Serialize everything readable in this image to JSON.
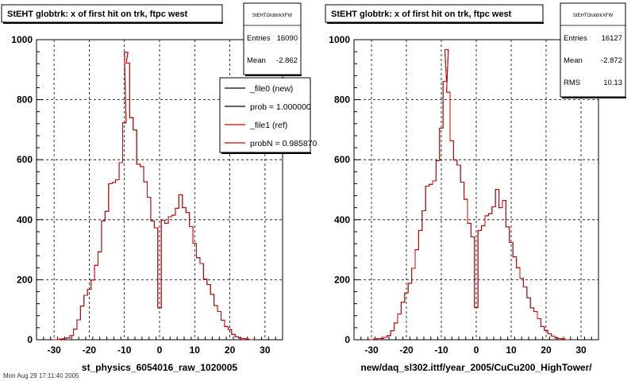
{
  "chart_data": [
    {
      "type": "step-histogram",
      "title": "StEHT globtrk: x of first hit on trk, ftpc west",
      "xlabel": "st_physics_6054016_raw_1020005",
      "xlim": [
        -35,
        35
      ],
      "ylim": [
        0,
        1000
      ],
      "xticks": [
        -30,
        -20,
        -10,
        0,
        10,
        20,
        30
      ],
      "yticks": [
        0,
        200,
        400,
        600,
        800,
        1000
      ],
      "grid": true,
      "stats": {
        "name": "StEHTGlobtrkXFW",
        "rows": [
          {
            "label": "Entries",
            "value": "16090"
          },
          {
            "label": "Mean",
            "value": "-2.862"
          }
        ]
      },
      "legend": {
        "placement": "top-right",
        "entries": [
          {
            "label": "_file0 (new)",
            "color": "#000000"
          },
          {
            "label": "prob = 1.000000",
            "color": "#000000"
          },
          {
            "label": "_file1 (ref)",
            "color": "#d40000"
          },
          {
            "label": "probN = 0.985870",
            "color": "#d40000"
          }
        ]
      },
      "bin_edges": [
        -35,
        35
      ],
      "series": [
        {
          "color": "#000000",
          "values": [
            0,
            0,
            0,
            0,
            0,
            0,
            0,
            0,
            0,
            0,
            0,
            0,
            0,
            0,
            0,
            0,
            0,
            0,
            0,
            0,
            0,
            0,
            0,
            0,
            0,
            0,
            0,
            0,
            0,
            0,
            0,
            0,
            0,
            0,
            0,
            0,
            0,
            0,
            0,
            0,
            0,
            0,
            0,
            0,
            0,
            0,
            0,
            0,
            0,
            0,
            0,
            0,
            0,
            0,
            0,
            0,
            0,
            0,
            0,
            0,
            0,
            0,
            0,
            0,
            0,
            0,
            0,
            0,
            0,
            0
          ]
        },
        {
          "color": "#d40000",
          "values": [
            0,
            0,
            0,
            0,
            0,
            0,
            0,
            0,
            0,
            0,
            0,
            0,
            0,
            0,
            0,
            0,
            0,
            0,
            0,
            0,
            0,
            0,
            0,
            0,
            0,
            0,
            0,
            0,
            0,
            0,
            0,
            0,
            0,
            0,
            0,
            0,
            0,
            0,
            0,
            0,
            0,
            0,
            0,
            0,
            0,
            0,
            0,
            0,
            0,
            0,
            0,
            0,
            0,
            0,
            0,
            0,
            0,
            0,
            0,
            0,
            0,
            0,
            0,
            0,
            0,
            0,
            0,
            0,
            0,
            0
          ]
        }
      ],
      "hist": [
        {
          "x": -30.0,
          "y": 0
        },
        {
          "x": -29.0,
          "y": 0
        },
        {
          "x": -28.0,
          "y": 2
        },
        {
          "x": -27.0,
          "y": 4
        },
        {
          "x": -26.0,
          "y": 6
        },
        {
          "x": -25.0,
          "y": 14
        },
        {
          "x": -24.0,
          "y": 35
        },
        {
          "x": -23.0,
          "y": 66
        },
        {
          "x": -22.0,
          "y": 112
        },
        {
          "x": -21.0,
          "y": 148
        },
        {
          "x": -20.0,
          "y": 168
        },
        {
          "x": -19.0,
          "y": 199
        },
        {
          "x": -18.0,
          "y": 248
        },
        {
          "x": -17.0,
          "y": 293
        },
        {
          "x": -16.0,
          "y": 396
        },
        {
          "x": -15.0,
          "y": 428
        },
        {
          "x": -14.0,
          "y": 520
        },
        {
          "x": -13.0,
          "y": 524
        },
        {
          "x": -12.0,
          "y": 533
        },
        {
          "x": -11.0,
          "y": 590
        },
        {
          "x": -10.0,
          "y": 723
        },
        {
          "x": -9.5,
          "y": 958
        },
        {
          "x": -9.0,
          "y": 922
        },
        {
          "x": -8.0,
          "y": 740
        },
        {
          "x": -7.0,
          "y": 699
        },
        {
          "x": -6.0,
          "y": 585
        },
        {
          "x": -5.0,
          "y": 577
        },
        {
          "x": -4.0,
          "y": 526
        },
        {
          "x": -3.0,
          "y": 475
        },
        {
          "x": -2.0,
          "y": 396
        },
        {
          "x": -1.0,
          "y": 373
        },
        {
          "x": 0.0,
          "y": 106
        },
        {
          "x": 1.0,
          "y": 398
        },
        {
          "x": 2.0,
          "y": 388
        },
        {
          "x": 3.0,
          "y": 410
        },
        {
          "x": 4.0,
          "y": 415
        },
        {
          "x": 5.0,
          "y": 438
        },
        {
          "x": 6.0,
          "y": 483
        },
        {
          "x": 7.0,
          "y": 440
        },
        {
          "x": 8.0,
          "y": 424
        },
        {
          "x": 9.0,
          "y": 377
        },
        {
          "x": 10.0,
          "y": 321
        },
        {
          "x": 11.0,
          "y": 273
        },
        {
          "x": 12.0,
          "y": 254
        },
        {
          "x": 13.0,
          "y": 202
        },
        {
          "x": 14.0,
          "y": 184
        },
        {
          "x": 15.0,
          "y": 151
        },
        {
          "x": 16.0,
          "y": 114
        },
        {
          "x": 17.0,
          "y": 94
        },
        {
          "x": 18.0,
          "y": 65
        },
        {
          "x": 19.0,
          "y": 44
        },
        {
          "x": 20.0,
          "y": 34
        },
        {
          "x": 21.0,
          "y": 18
        },
        {
          "x": 22.0,
          "y": 10
        },
        {
          "x": 23.0,
          "y": 5
        },
        {
          "x": 24.0,
          "y": 4
        },
        {
          "x": 25.0,
          "y": 2
        },
        {
          "x": 26.0,
          "y": 0
        }
      ]
    },
    {
      "type": "step-histogram",
      "title": "StEHT globtrk: x of first hit on trk, ftpc west",
      "xlabel": "new/daq_sl302.ittf/year_2005/CuCu200_HighTower/",
      "xlim": [
        -35,
        35
      ],
      "ylim": [
        0,
        1000
      ],
      "xticks": [
        -30,
        -20,
        -10,
        0,
        10,
        20,
        30
      ],
      "yticks": [
        0,
        200,
        400,
        600,
        800,
        1000
      ],
      "grid": true,
      "stats": {
        "name": "StEHTGlobtrkXFW",
        "rows": [
          {
            "label": "Entries",
            "value": "16127"
          },
          {
            "label": "Mean",
            "value": "-2.872"
          },
          {
            "label": "RMS",
            "value": "10.13"
          }
        ]
      },
      "hist": [
        {
          "x": -30.0,
          "y": 0
        },
        {
          "x": -29.0,
          "y": 2
        },
        {
          "x": -28.0,
          "y": 4
        },
        {
          "x": -27.0,
          "y": 4
        },
        {
          "x": -26.0,
          "y": 8
        },
        {
          "x": -25.0,
          "y": 14
        },
        {
          "x": -24.0,
          "y": 30
        },
        {
          "x": -23.0,
          "y": 56
        },
        {
          "x": -22.0,
          "y": 86
        },
        {
          "x": -21.0,
          "y": 125
        },
        {
          "x": -20.0,
          "y": 156
        },
        {
          "x": -19.0,
          "y": 188
        },
        {
          "x": -18.0,
          "y": 238
        },
        {
          "x": -17.0,
          "y": 300
        },
        {
          "x": -16.0,
          "y": 364
        },
        {
          "x": -15.0,
          "y": 430
        },
        {
          "x": -14.0,
          "y": 512
        },
        {
          "x": -13.0,
          "y": 518
        },
        {
          "x": -12.0,
          "y": 529
        },
        {
          "x": -11.0,
          "y": 597
        },
        {
          "x": -10.0,
          "y": 705
        },
        {
          "x": -9.0,
          "y": 861
        },
        {
          "x": -8.5,
          "y": 967
        },
        {
          "x": -8.0,
          "y": 825
        },
        {
          "x": -7.0,
          "y": 663
        },
        {
          "x": -6.0,
          "y": 599
        },
        {
          "x": -5.0,
          "y": 582
        },
        {
          "x": -4.0,
          "y": 525
        },
        {
          "x": -3.0,
          "y": 468
        },
        {
          "x": -2.0,
          "y": 388
        },
        {
          "x": -1.0,
          "y": 343
        },
        {
          "x": 0.0,
          "y": 107
        },
        {
          "x": 1.0,
          "y": 364
        },
        {
          "x": 2.0,
          "y": 380
        },
        {
          "x": 3.0,
          "y": 413
        },
        {
          "x": 4.0,
          "y": 420
        },
        {
          "x": 5.0,
          "y": 443
        },
        {
          "x": 6.0,
          "y": 501
        },
        {
          "x": 7.0,
          "y": 440
        },
        {
          "x": 8.0,
          "y": 464
        },
        {
          "x": 9.0,
          "y": 376
        },
        {
          "x": 10.0,
          "y": 324
        },
        {
          "x": 11.0,
          "y": 276
        },
        {
          "x": 12.0,
          "y": 240
        },
        {
          "x": 13.0,
          "y": 205
        },
        {
          "x": 14.0,
          "y": 176
        },
        {
          "x": 15.0,
          "y": 140
        },
        {
          "x": 16.0,
          "y": 106
        },
        {
          "x": 17.0,
          "y": 94
        },
        {
          "x": 18.0,
          "y": 70
        },
        {
          "x": 19.0,
          "y": 44
        },
        {
          "x": 20.0,
          "y": 31
        },
        {
          "x": 21.0,
          "y": 20
        },
        {
          "x": 22.0,
          "y": 12
        },
        {
          "x": 23.0,
          "y": 6
        },
        {
          "x": 24.0,
          "y": 4
        },
        {
          "x": 25.0,
          "y": 2
        },
        {
          "x": 26.0,
          "y": 0
        }
      ]
    }
  ],
  "footer": {
    "date_text": "Mon Aug 29 17:11:40 2005"
  }
}
